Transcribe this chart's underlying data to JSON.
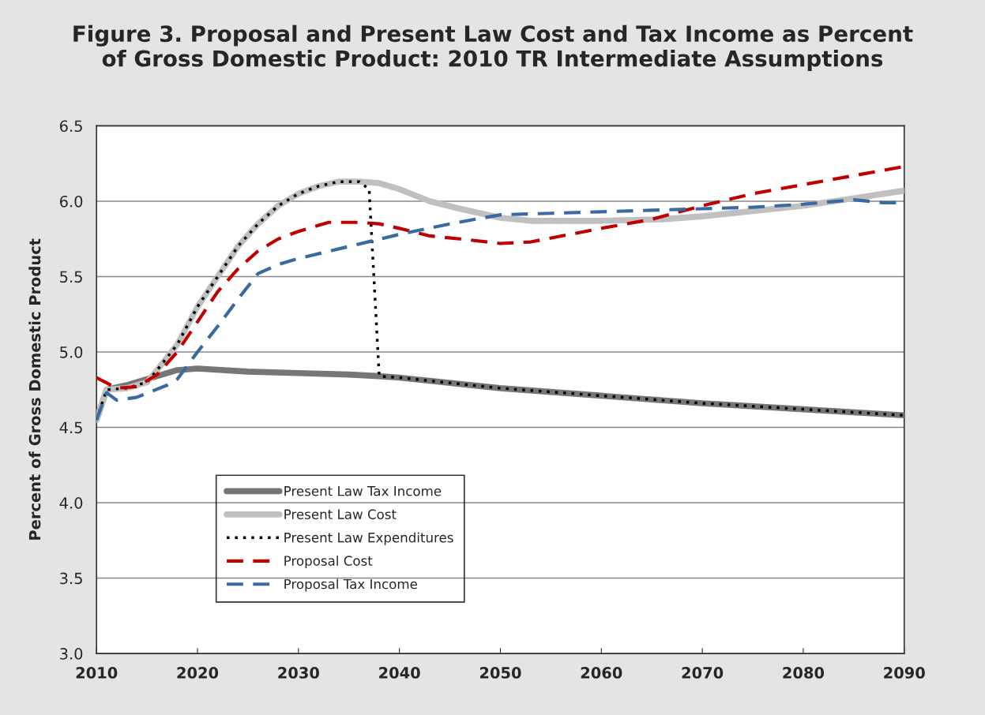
{
  "chart_data": {
    "type": "line",
    "title": "Figure 3. Proposal and Present Law Cost and Tax Income as Percent\nof Gross Domestic Product: 2010 TR Intermediate Assumptions",
    "ylabel": "Percent of Gross Domestic Product",
    "xlim": [
      2010,
      2090
    ],
    "xticks": [
      2010,
      2020,
      2030,
      2040,
      2050,
      2060,
      2070,
      2080,
      2090
    ],
    "ylim": [
      3.0,
      6.5
    ],
    "yticks": [
      {
        "value": 3.0,
        "label": "3.0"
      },
      {
        "value": 3.5,
        "label": "3.5"
      },
      {
        "value": 4.0,
        "label": "4.0"
      },
      {
        "value": 4.5,
        "label": "4.5"
      },
      {
        "value": 5.0,
        "label": "5.0"
      },
      {
        "value": 5.5,
        "label": "5.5"
      },
      {
        "value": 6.0,
        "label": "6.0"
      },
      {
        "value": 6.5,
        "label": "6.5"
      }
    ],
    "grid": "y",
    "legend": "bottom left",
    "series": [
      {
        "name": "Present Law Tax Income",
        "color": "#767676",
        "line_style": "solid",
        "x": [
          2010,
          2011,
          2013,
          2015,
          2018,
          2020,
          2025,
          2030,
          2035,
          2038,
          2040,
          2050,
          2060,
          2070,
          2080,
          2090
        ],
        "values": [
          4.55,
          4.75,
          4.78,
          4.82,
          4.88,
          4.89,
          4.87,
          4.86,
          4.85,
          4.84,
          4.83,
          4.76,
          4.71,
          4.66,
          4.62,
          4.58
        ]
      },
      {
        "name": "Present Law Cost",
        "color": "#c0c0c0",
        "line_style": "solid",
        "x": [
          2010,
          2011,
          2013,
          2015,
          2016,
          2018,
          2020,
          2022,
          2024,
          2026,
          2028,
          2030,
          2032,
          2034,
          2036,
          2038,
          2040,
          2043,
          2046,
          2050,
          2053,
          2060,
          2066,
          2070,
          2080,
          2085,
          2090
        ],
        "values": [
          4.55,
          4.75,
          4.76,
          4.8,
          4.88,
          5.05,
          5.3,
          5.5,
          5.7,
          5.85,
          5.97,
          6.05,
          6.1,
          6.13,
          6.13,
          6.12,
          6.08,
          6.0,
          5.95,
          5.89,
          5.87,
          5.87,
          5.88,
          5.9,
          5.97,
          6.02,
          6.07
        ]
      },
      {
        "name": "Present Law Expenditures",
        "color": "#000000",
        "line_style": "dotted",
        "x": [
          2010,
          2011,
          2013,
          2015,
          2016,
          2018,
          2020,
          2022,
          2024,
          2026,
          2028,
          2030,
          2032,
          2034,
          2036,
          2037,
          2038,
          2040,
          2050,
          2060,
          2070,
          2080,
          2090
        ],
        "values": [
          4.55,
          4.75,
          4.76,
          4.8,
          4.88,
          5.05,
          5.3,
          5.5,
          5.7,
          5.85,
          5.97,
          6.05,
          6.1,
          6.13,
          6.13,
          6.08,
          4.84,
          4.83,
          4.76,
          4.71,
          4.66,
          4.62,
          4.58
        ]
      },
      {
        "name": "Proposal Cost",
        "color": "#c00000",
        "line_style": "dashed",
        "x": [
          2010,
          2012,
          2014,
          2016,
          2018,
          2020,
          2022,
          2024,
          2026,
          2028,
          2030,
          2033,
          2036,
          2038,
          2040,
          2043,
          2046,
          2050,
          2053,
          2060,
          2065,
          2070,
          2075,
          2080,
          2085,
          2090
        ],
        "values": [
          4.83,
          4.76,
          4.77,
          4.85,
          5.0,
          5.2,
          5.4,
          5.55,
          5.67,
          5.75,
          5.8,
          5.86,
          5.86,
          5.85,
          5.82,
          5.77,
          5.75,
          5.72,
          5.73,
          5.82,
          5.88,
          5.97,
          6.05,
          6.11,
          6.17,
          6.23
        ]
      },
      {
        "name": "Proposal Tax Income",
        "color": "#3b6aa0",
        "line_style": "dashed",
        "x": [
          2010,
          2011,
          2012,
          2014,
          2017,
          2018,
          2020,
          2022,
          2024,
          2026,
          2028,
          2030,
          2035,
          2040,
          2045,
          2050,
          2055,
          2060,
          2065,
          2070,
          2075,
          2080,
          2085,
          2088,
          2090
        ],
        "values": [
          4.55,
          4.73,
          4.68,
          4.7,
          4.78,
          4.82,
          5.0,
          5.17,
          5.35,
          5.52,
          5.58,
          5.62,
          5.7,
          5.78,
          5.85,
          5.91,
          5.92,
          5.93,
          5.94,
          5.95,
          5.96,
          5.98,
          6.01,
          5.99,
          5.99
        ]
      }
    ]
  }
}
